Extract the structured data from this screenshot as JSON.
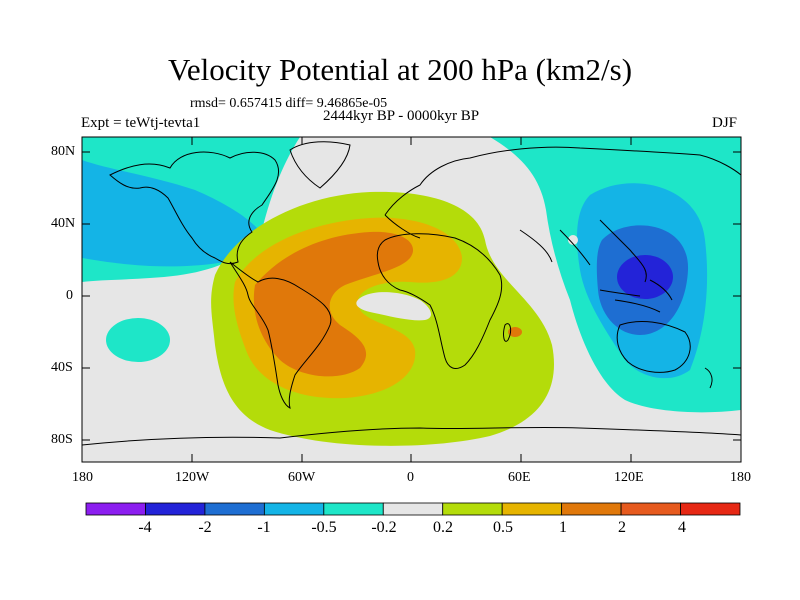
{
  "title": "Velocity Potential at 200 hPa (km2/s)",
  "stats_line": "rmsd= 0.657415 diff= 9.46865e-05",
  "period": "2444kyr BP - 0000kyr BP",
  "experiment": "Expt = teWtj-tevta1",
  "season": "DJF",
  "axes": {
    "lat_ticks": [
      "80N",
      "40N",
      "0",
      "40S",
      "80S"
    ],
    "lon_ticks": [
      "180",
      "120W",
      "60W",
      "0",
      "60E",
      "120E",
      "180"
    ]
  },
  "colorbar": {
    "labels": [
      "-4",
      "-2",
      "-1",
      "-0.5",
      "-0.2",
      "0.2",
      "0.5",
      "1",
      "2",
      "4"
    ],
    "colors": [
      "#8c1ef0",
      "#2323d8",
      "#1e6ed2",
      "#14b4e6",
      "#1ee6c8",
      "#e6e6e6",
      "#b4dc0a",
      "#e6b400",
      "#e0780a",
      "#e65a1e",
      "#e62814"
    ]
  },
  "field_colors": {
    "neg_05": "#14b4e6",
    "neg_1": "#1e6ed2",
    "neg_2": "#2323d8",
    "neg_02": "#1ee6c8",
    "neutral": "#e6e6e6",
    "pos_02": "#b4dc0a",
    "pos_05": "#e6b400",
    "pos_1": "#e0780a",
    "pos_2": "#e65a1e"
  }
}
